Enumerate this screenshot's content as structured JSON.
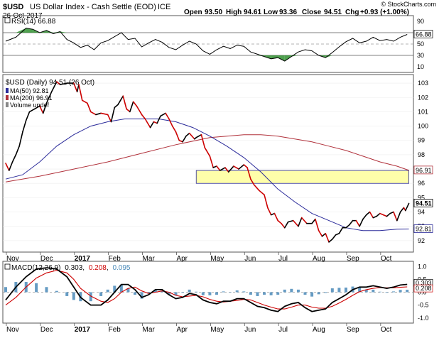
{
  "header": {
    "symbol": "$USD",
    "name": "US Dollar Index - Cash Settle (EOD)",
    "exchange": "ICE",
    "date": "26-Oct-2017",
    "open_label": "Open",
    "open": "93.50",
    "high_label": "High",
    "high": "94.61",
    "low_label": "Low",
    "low": "93.36",
    "close_label": "Close",
    "close": "94.51",
    "chg_label": "Chg",
    "chg": "+0.93 (+1.00%)",
    "copyright": "© StockCharts.com"
  },
  "colors": {
    "price": "#000000",
    "price_down": "#cc0000",
    "ma50": "#2b2b9a",
    "ma200": "#b0303a",
    "rsi": "#000000",
    "rsi_fill": "#2f8f2f",
    "macd": "#000000",
    "signal": "#cc0000",
    "histogram": "#4a8ab8",
    "highlight_fill": "#ffffaa",
    "highlight_border": "#2b2b9a",
    "volume_icon": "#888888"
  },
  "rsi_panel": {
    "legend": "RSI(14) 66.88",
    "ticks": [
      "90",
      "70",
      "50",
      "30",
      "10"
    ],
    "last_label": "66.88"
  },
  "price_panel": {
    "legend_main": "$USD (Daily) 94.51 (26 Oct)",
    "legend_ma50": "MA(50) 92.81",
    "legend_ma200": "MA(200) 96.91",
    "legend_volume": "Volume undef",
    "ticks": [
      "103",
      "102",
      "101",
      "100",
      "99",
      "98",
      "97",
      "96",
      "95",
      "94",
      "93",
      "92"
    ],
    "last_labels": {
      "close": "94.51",
      "ma200": "96.91",
      "ma50": "92.81"
    }
  },
  "macd_panel": {
    "legend_prefix": "MACD(12,26,9)",
    "macd_value": "0.303",
    "signal_value": "0.208",
    "hist_value": "0.095",
    "ticks": [
      "1.0",
      "0.5",
      "0.0",
      "-0.5",
      "-1.0"
    ],
    "last_labels": {
      "macd": "0.303",
      "signal": "0.208"
    }
  },
  "x_axis": {
    "labels": [
      "Nov",
      "Dec",
      "2017",
      "Feb",
      "Mar",
      "Apr",
      "May",
      "Jun",
      "Jul",
      "Aug",
      "Sep",
      "Oct"
    ]
  },
  "chart_data": {
    "type": "line",
    "title": "$USD US Dollar Index - Cash Settle (EOD) ICE",
    "x_unit": "months from Nov 1 2016",
    "price": {
      "name": "$USD (Daily)",
      "ylim": [
        91.2,
        103.6
      ],
      "points": [
        [
          0,
          97.4
        ],
        [
          0.1,
          96.9
        ],
        [
          0.2,
          97.5
        ],
        [
          0.3,
          98.0
        ],
        [
          0.4,
          98.6
        ],
        [
          0.5,
          99.6
        ],
        [
          0.6,
          100.4
        ],
        [
          0.7,
          101.0
        ],
        [
          0.85,
          101.2
        ],
        [
          1.0,
          101.4
        ],
        [
          1.1,
          100.9
        ],
        [
          1.2,
          101.6
        ],
        [
          1.35,
          102.4
        ],
        [
          1.5,
          103.1
        ],
        [
          1.6,
          102.9
        ],
        [
          1.8,
          103.0
        ],
        [
          2.0,
          103.0
        ],
        [
          2.1,
          102.4
        ],
        [
          2.15,
          102.9
        ],
        [
          2.25,
          101.8
        ],
        [
          2.4,
          101.6
        ],
        [
          2.5,
          101.0
        ],
        [
          2.65,
          100.8
        ],
        [
          2.8,
          100.9
        ],
        [
          3.0,
          100.8
        ],
        [
          3.1,
          100.3
        ],
        [
          3.2,
          101.3
        ],
        [
          3.3,
          101.5
        ],
        [
          3.45,
          102.1
        ],
        [
          3.55,
          101.2
        ],
        [
          3.65,
          101.0
        ],
        [
          3.75,
          101.7
        ],
        [
          3.85,
          101.4
        ],
        [
          4.0,
          100.8
        ],
        [
          4.1,
          100.5
        ],
        [
          4.25,
          99.9
        ],
        [
          4.35,
          100.3
        ],
        [
          4.45,
          100.2
        ],
        [
          4.55,
          100.7
        ],
        [
          4.7,
          100.9
        ],
        [
          4.8,
          100.5
        ],
        [
          4.9,
          100.0
        ],
        [
          5.0,
          99.6
        ],
        [
          5.1,
          99.0
        ],
        [
          5.2,
          98.9
        ],
        [
          5.3,
          99.3
        ],
        [
          5.4,
          99.5
        ],
        [
          5.55,
          99.1
        ],
        [
          5.6,
          99.2
        ],
        [
          5.75,
          99.4
        ],
        [
          5.85,
          98.5
        ],
        [
          6.0,
          97.9
        ],
        [
          6.1,
          97.1
        ],
        [
          6.2,
          97.2
        ],
        [
          6.3,
          96.9
        ],
        [
          6.45,
          97.1
        ],
        [
          6.55,
          96.8
        ],
        [
          6.7,
          97.2
        ],
        [
          6.85,
          97.0
        ],
        [
          7.0,
          97.3
        ],
        [
          7.1,
          97.1
        ],
        [
          7.2,
          96.3
        ],
        [
          7.3,
          95.9
        ],
        [
          7.45,
          95.5
        ],
        [
          7.6,
          95.2
        ],
        [
          7.7,
          94.3
        ],
        [
          7.8,
          93.8
        ],
        [
          7.9,
          93.9
        ],
        [
          8.0,
          93.4
        ],
        [
          8.1,
          93.2
        ],
        [
          8.2,
          92.9
        ],
        [
          8.3,
          93.3
        ],
        [
          8.45,
          93.4
        ],
        [
          8.6,
          93.0
        ],
        [
          8.7,
          93.6
        ],
        [
          8.85,
          93.2
        ],
        [
          9.0,
          93.2
        ],
        [
          9.1,
          93.5
        ],
        [
          9.2,
          92.7
        ],
        [
          9.3,
          92.3
        ],
        [
          9.4,
          92.5
        ],
        [
          9.5,
          91.9
        ],
        [
          9.6,
          92.1
        ],
        [
          9.7,
          92.4
        ],
        [
          9.8,
          92.5
        ],
        [
          9.9,
          92.9
        ],
        [
          10.0,
          92.9
        ],
        [
          10.1,
          93.1
        ],
        [
          10.2,
          93.4
        ],
        [
          10.3,
          93.4
        ],
        [
          10.4,
          93.0
        ],
        [
          10.5,
          93.5
        ],
        [
          10.6,
          93.8
        ],
        [
          10.7,
          94.0
        ],
        [
          10.8,
          93.6
        ],
        [
          10.9,
          93.7
        ],
        [
          11.0,
          93.9
        ],
        [
          11.1,
          93.8
        ],
        [
          11.2,
          93.7
        ],
        [
          11.3,
          93.9
        ],
        [
          11.4,
          94.0
        ],
        [
          11.5,
          93.4
        ],
        [
          11.6,
          94.0
        ],
        [
          11.7,
          94.3
        ],
        [
          11.75,
          94.1
        ],
        [
          11.85,
          94.6
        ]
      ]
    },
    "ma50": {
      "name": "MA(50)",
      "last": 92.81,
      "points": [
        [
          0,
          96.3
        ],
        [
          0.5,
          96.6
        ],
        [
          1.0,
          97.5
        ],
        [
          1.5,
          98.6
        ],
        [
          2.0,
          99.4
        ],
        [
          2.5,
          100.0
        ],
        [
          3.0,
          100.3
        ],
        [
          3.5,
          100.5
        ],
        [
          4.0,
          100.5
        ],
        [
          4.5,
          100.5
        ],
        [
          5.0,
          100.3
        ],
        [
          5.5,
          99.9
        ],
        [
          6.0,
          99.3
        ],
        [
          6.5,
          98.6
        ],
        [
          7.0,
          97.8
        ],
        [
          7.5,
          96.8
        ],
        [
          8.0,
          95.6
        ],
        [
          8.5,
          94.7
        ],
        [
          9.0,
          93.9
        ],
        [
          9.5,
          93.4
        ],
        [
          10.0,
          92.9
        ],
        [
          10.5,
          92.7
        ],
        [
          11.0,
          92.7
        ],
        [
          11.5,
          92.8
        ],
        [
          11.85,
          92.81
        ]
      ]
    },
    "ma200": {
      "name": "MA(200)",
      "last": 96.91,
      "points": [
        [
          0,
          96.1
        ],
        [
          1.0,
          96.5
        ],
        [
          2.0,
          97.0
        ],
        [
          3.0,
          97.5
        ],
        [
          4.0,
          98.1
        ],
        [
          5.0,
          98.7
        ],
        [
          6.0,
          99.2
        ],
        [
          7.0,
          99.4
        ],
        [
          7.5,
          99.4
        ],
        [
          8.0,
          99.3
        ],
        [
          8.5,
          99.1
        ],
        [
          9.0,
          98.9
        ],
        [
          9.5,
          98.6
        ],
        [
          10.0,
          98.3
        ],
        [
          10.5,
          97.9
        ],
        [
          11.0,
          97.5
        ],
        [
          11.5,
          97.2
        ],
        [
          11.85,
          96.91
        ]
      ]
    },
    "highlight_zone": {
      "x_range": [
        5.6,
        11.85
      ],
      "y_range": [
        96.0,
        96.9
      ]
    },
    "rsi": {
      "name": "RSI(14)",
      "ylim": [
        0,
        100
      ],
      "levels": [
        70,
        50,
        30
      ],
      "last": 66.88,
      "points": [
        [
          0,
          55
        ],
        [
          0.3,
          62
        ],
        [
          0.6,
          78
        ],
        [
          0.8,
          76
        ],
        [
          1.0,
          70
        ],
        [
          1.2,
          74
        ],
        [
          1.4,
          68
        ],
        [
          1.6,
          72
        ],
        [
          1.8,
          58
        ],
        [
          2.0,
          52
        ],
        [
          2.2,
          44
        ],
        [
          2.4,
          48
        ],
        [
          2.6,
          40
        ],
        [
          2.8,
          52
        ],
        [
          3.0,
          56
        ],
        [
          3.2,
          63
        ],
        [
          3.4,
          70
        ],
        [
          3.6,
          58
        ],
        [
          3.8,
          60
        ],
        [
          4.0,
          45
        ],
        [
          4.2,
          52
        ],
        [
          4.4,
          58
        ],
        [
          4.6,
          53
        ],
        [
          4.8,
          44
        ],
        [
          5.0,
          40
        ],
        [
          5.2,
          48
        ],
        [
          5.4,
          55
        ],
        [
          5.6,
          50
        ],
        [
          5.8,
          38
        ],
        [
          6.0,
          32
        ],
        [
          6.2,
          40
        ],
        [
          6.4,
          46
        ],
        [
          6.6,
          42
        ],
        [
          6.8,
          48
        ],
        [
          7.0,
          46
        ],
        [
          7.2,
          36
        ],
        [
          7.4,
          32
        ],
        [
          7.6,
          28
        ],
        [
          7.8,
          24
        ],
        [
          8.0,
          26
        ],
        [
          8.2,
          20
        ],
        [
          8.4,
          28
        ],
        [
          8.6,
          36
        ],
        [
          8.8,
          40
        ],
        [
          9.0,
          38
        ],
        [
          9.2,
          30
        ],
        [
          9.4,
          26
        ],
        [
          9.6,
          35
        ],
        [
          9.8,
          45
        ],
        [
          10.0,
          54
        ],
        [
          10.2,
          60
        ],
        [
          10.4,
          52
        ],
        [
          10.6,
          55
        ],
        [
          10.8,
          62
        ],
        [
          11.0,
          56
        ],
        [
          11.2,
          58
        ],
        [
          11.4,
          55
        ],
        [
          11.6,
          62
        ],
        [
          11.8,
          66.88
        ]
      ]
    },
    "macd": {
      "name": "MACD(12,26,9)",
      "ylim": [
        -1.2,
        1.2
      ],
      "last": {
        "macd": 0.303,
        "signal": 0.208,
        "hist": 0.095
      },
      "macd_points": [
        [
          0,
          -0.3
        ],
        [
          0.3,
          0.2
        ],
        [
          0.6,
          0.6
        ],
        [
          0.9,
          0.9
        ],
        [
          1.2,
          0.95
        ],
        [
          1.5,
          0.9
        ],
        [
          1.8,
          0.6
        ],
        [
          2.0,
          0.2
        ],
        [
          2.2,
          -0.2
        ],
        [
          2.5,
          -0.5
        ],
        [
          2.8,
          -0.5
        ],
        [
          3.0,
          -0.3
        ],
        [
          3.2,
          0.0
        ],
        [
          3.4,
          0.3
        ],
        [
          3.6,
          0.3
        ],
        [
          3.8,
          0.1
        ],
        [
          4.0,
          -0.2
        ],
        [
          4.2,
          -0.1
        ],
        [
          4.4,
          0.1
        ],
        [
          4.6,
          0.1
        ],
        [
          4.8,
          -0.1
        ],
        [
          5.0,
          -0.25
        ],
        [
          5.2,
          -0.2
        ],
        [
          5.4,
          -0.05
        ],
        [
          5.6,
          -0.1
        ],
        [
          5.8,
          -0.3
        ],
        [
          6.0,
          -0.4
        ],
        [
          6.2,
          -0.45
        ],
        [
          6.4,
          -0.35
        ],
        [
          6.6,
          -0.35
        ],
        [
          6.8,
          -0.25
        ],
        [
          7.0,
          -0.25
        ],
        [
          7.2,
          -0.4
        ],
        [
          7.4,
          -0.55
        ],
        [
          7.6,
          -0.6
        ],
        [
          7.8,
          -0.7
        ],
        [
          8.0,
          -0.75
        ],
        [
          8.2,
          -0.55
        ],
        [
          8.4,
          -0.45
        ],
        [
          8.6,
          -0.4
        ],
        [
          8.8,
          -0.6
        ],
        [
          9.0,
          -0.75
        ],
        [
          9.2,
          -0.7
        ],
        [
          9.4,
          -0.65
        ],
        [
          9.6,
          -0.4
        ],
        [
          9.8,
          -0.25
        ],
        [
          10.0,
          -0.1
        ],
        [
          10.2,
          0.1
        ],
        [
          10.4,
          0.2
        ],
        [
          10.6,
          0.2
        ],
        [
          10.8,
          0.25
        ],
        [
          11.0,
          0.2
        ],
        [
          11.2,
          0.15
        ],
        [
          11.4,
          0.2
        ],
        [
          11.6,
          0.28
        ],
        [
          11.8,
          0.303
        ]
      ],
      "signal_points": [
        [
          0,
          -0.5
        ],
        [
          0.3,
          -0.2
        ],
        [
          0.6,
          0.2
        ],
        [
          0.9,
          0.55
        ],
        [
          1.2,
          0.75
        ],
        [
          1.5,
          0.85
        ],
        [
          1.8,
          0.75
        ],
        [
          2.0,
          0.5
        ],
        [
          2.2,
          0.15
        ],
        [
          2.5,
          -0.15
        ],
        [
          2.8,
          -0.35
        ],
        [
          3.0,
          -0.4
        ],
        [
          3.2,
          -0.25
        ],
        [
          3.4,
          0.0
        ],
        [
          3.6,
          0.15
        ],
        [
          3.8,
          0.2
        ],
        [
          4.0,
          0.05
        ],
        [
          4.2,
          -0.05
        ],
        [
          4.4,
          0.0
        ],
        [
          4.6,
          0.05
        ],
        [
          4.8,
          0.0
        ],
        [
          5.0,
          -0.12
        ],
        [
          5.2,
          -0.18
        ],
        [
          5.4,
          -0.15
        ],
        [
          5.6,
          -0.12
        ],
        [
          5.8,
          -0.18
        ],
        [
          6.0,
          -0.28
        ],
        [
          6.2,
          -0.35
        ],
        [
          6.4,
          -0.38
        ],
        [
          6.6,
          -0.35
        ],
        [
          6.8,
          -0.32
        ],
        [
          7.0,
          -0.28
        ],
        [
          7.2,
          -0.3
        ],
        [
          7.4,
          -0.4
        ],
        [
          7.6,
          -0.5
        ],
        [
          7.8,
          -0.58
        ],
        [
          8.0,
          -0.65
        ],
        [
          8.2,
          -0.65
        ],
        [
          8.4,
          -0.58
        ],
        [
          8.6,
          -0.5
        ],
        [
          8.8,
          -0.5
        ],
        [
          9.0,
          -0.58
        ],
        [
          9.2,
          -0.62
        ],
        [
          9.4,
          -0.62
        ],
        [
          9.6,
          -0.55
        ],
        [
          9.8,
          -0.42
        ],
        [
          10.0,
          -0.28
        ],
        [
          10.2,
          -0.12
        ],
        [
          10.4,
          0.02
        ],
        [
          10.6,
          0.1
        ],
        [
          10.8,
          0.15
        ],
        [
          11.0,
          0.18
        ],
        [
          11.2,
          0.17
        ],
        [
          11.4,
          0.17
        ],
        [
          11.6,
          0.19
        ],
        [
          11.8,
          0.208
        ]
      ]
    }
  }
}
